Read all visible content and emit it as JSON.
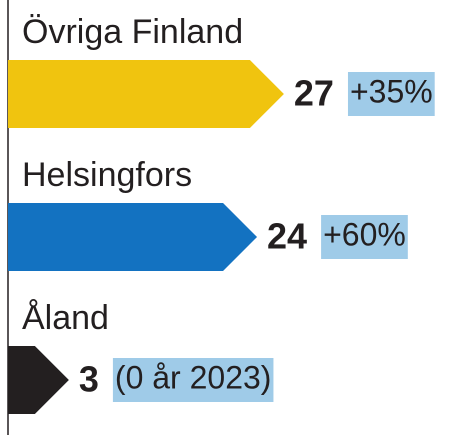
{
  "chart_data": {
    "type": "bar",
    "orientation": "horizontal",
    "categories": [
      "Övriga Finland",
      "Helsingfors",
      "Åland"
    ],
    "values": [
      27,
      24,
      3
    ],
    "colors": [
      "#f0c40f",
      "#1372c1",
      "#231f20"
    ],
    "annotations": [
      "+35%",
      "+60%",
      "(0 år 2023)"
    ]
  }
}
